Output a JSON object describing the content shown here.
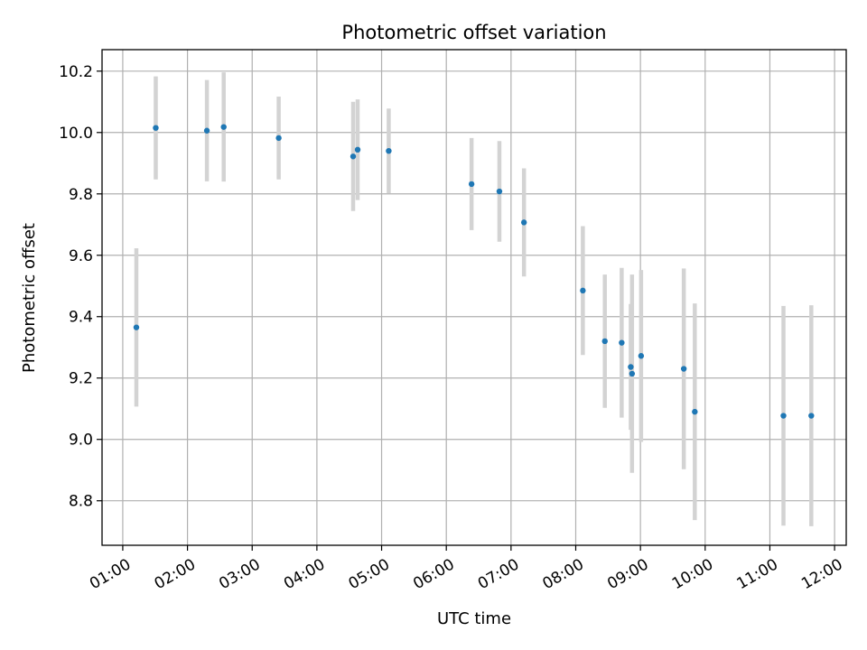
{
  "chart_data": {
    "type": "scatter",
    "title": "Photometric offset variation",
    "xlabel": "UTC time",
    "ylabel": "Photometric offset",
    "x_unit": "hours",
    "xlim": [
      0.68,
      12.18
    ],
    "ylim": [
      8.655,
      10.27
    ],
    "xticks": [
      1,
      2,
      3,
      4,
      5,
      6,
      7,
      8,
      9,
      10,
      11,
      12
    ],
    "xtick_labels": [
      "01:00",
      "02:00",
      "03:00",
      "04:00",
      "05:00",
      "06:00",
      "07:00",
      "08:00",
      "09:00",
      "10:00",
      "11:00",
      "12:00"
    ],
    "yticks": [
      8.8,
      9.0,
      9.2,
      9.4,
      9.6,
      9.8,
      10.0,
      10.2
    ],
    "ytick_labels": [
      "8.8",
      "9.0",
      "9.2",
      "9.4",
      "9.6",
      "9.8",
      "10.0",
      "10.2"
    ],
    "grid": true,
    "point_color": "#1f77b4",
    "errorbar_color": "#d3d3d3",
    "points": [
      {
        "x": 1.21,
        "y": 9.365,
        "err": 0.258
      },
      {
        "x": 1.51,
        "y": 10.015,
        "err": 0.168
      },
      {
        "x": 2.3,
        "y": 10.006,
        "err": 0.165
      },
      {
        "x": 2.56,
        "y": 10.018,
        "err": 0.178
      },
      {
        "x": 3.41,
        "y": 9.982,
        "err": 0.135
      },
      {
        "x": 4.56,
        "y": 9.922,
        "err": 0.178
      },
      {
        "x": 4.63,
        "y": 9.944,
        "err": 0.164
      },
      {
        "x": 5.11,
        "y": 9.94,
        "err": 0.138
      },
      {
        "x": 6.39,
        "y": 9.832,
        "err": 0.15
      },
      {
        "x": 6.82,
        "y": 9.808,
        "err": 0.164
      },
      {
        "x": 7.2,
        "y": 9.707,
        "err": 0.176
      },
      {
        "x": 8.11,
        "y": 9.485,
        "err": 0.21
      },
      {
        "x": 8.45,
        "y": 9.32,
        "err": 0.217
      },
      {
        "x": 8.71,
        "y": 9.315,
        "err": 0.244
      },
      {
        "x": 8.85,
        "y": 9.236,
        "err": 0.205
      },
      {
        "x": 8.87,
        "y": 9.214,
        "err": 0.323
      },
      {
        "x": 9.01,
        "y": 9.272,
        "err": 0.28
      },
      {
        "x": 9.67,
        "y": 9.23,
        "err": 0.327
      },
      {
        "x": 9.84,
        "y": 9.09,
        "err": 0.353
      },
      {
        "x": 11.21,
        "y": 9.077,
        "err": 0.358
      },
      {
        "x": 11.64,
        "y": 9.077,
        "err": 0.36
      }
    ]
  }
}
